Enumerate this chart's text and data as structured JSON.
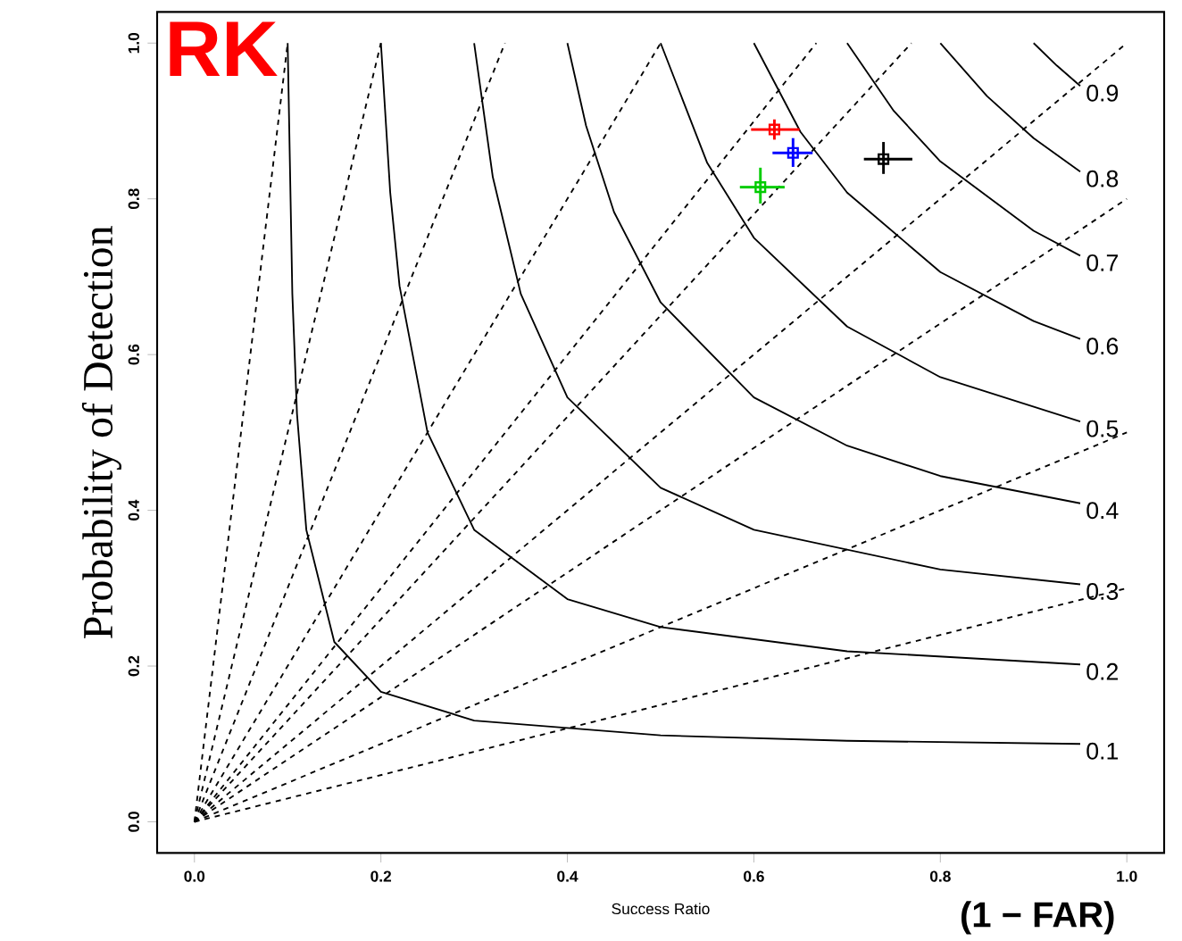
{
  "chart_data": {
    "type": "scatter",
    "xlabel": "Success Ratio",
    "ylabel": "Probability of Detection",
    "annotations": [
      "RK",
      "(1 − FAR)"
    ],
    "xlim": [
      -0.04,
      1.04
    ],
    "ylim": [
      -0.04,
      1.04
    ],
    "xticks": [
      {
        "value": 0,
        "label": "0.0"
      },
      0.2,
      0.4,
      0.6,
      0.8,
      {
        "value": 1,
        "label": "1.0"
      }
    ],
    "yticks": [
      {
        "value": 0,
        "label": "0.0"
      },
      0.2,
      0.4,
      0.6,
      0.8,
      {
        "value": 1,
        "label": "1.0"
      }
    ],
    "series": [
      {
        "type": "line",
        "line_style": "dashed",
        "color": "#000000",
        "x": [
          0,
          1
        ],
        "values": [
          0,
          0.3
        ]
      },
      {
        "type": "line",
        "line_style": "dashed",
        "color": "#000000",
        "x": [
          0,
          1
        ],
        "values": [
          0,
          0.5
        ]
      },
      {
        "type": "line",
        "line_style": "dashed",
        "color": "#000000",
        "x": [
          0,
          1
        ],
        "values": [
          0,
          0.8
        ]
      },
      {
        "type": "line",
        "line_style": "dashed",
        "color": "#000000",
        "x": [
          0,
          1
        ],
        "values": [
          0,
          1
        ]
      },
      {
        "type": "line",
        "line_style": "dashed",
        "color": "#000000",
        "x": [
          0,
          0.769
        ],
        "values": [
          0,
          1
        ]
      },
      {
        "type": "line",
        "line_style": "dashed",
        "color": "#000000",
        "x": [
          0,
          0.667
        ],
        "values": [
          0,
          1
        ]
      },
      {
        "type": "line",
        "line_style": "dashed",
        "color": "#000000",
        "x": [
          0,
          0.5
        ],
        "values": [
          0,
          1
        ]
      },
      {
        "type": "line",
        "line_style": "dashed",
        "color": "#000000",
        "x": [
          0,
          0.333
        ],
        "values": [
          0,
          1
        ]
      },
      {
        "type": "line",
        "line_style": "dashed",
        "color": "#000000",
        "x": [
          0,
          0.2
        ],
        "values": [
          0,
          1
        ]
      },
      {
        "type": "line",
        "line_style": "dashed",
        "color": "#000000",
        "x": [
          0,
          0.1
        ],
        "values": [
          0,
          1
        ]
      },
      {
        "type": "line",
        "line_style": "solid",
        "color": "#000000",
        "name": "0.1",
        "x": [
          0.1,
          0.105,
          0.11,
          0.12,
          0.15,
          0.2,
          0.3,
          0.5,
          0.7,
          0.95
        ],
        "values": [
          1,
          0.678,
          0.524,
          0.375,
          0.231,
          0.167,
          0.13,
          0.111,
          0.104,
          0.1
        ]
      },
      {
        "type": "line",
        "line_style": "solid",
        "color": "#000000",
        "name": "0.2",
        "x": [
          0.2,
          0.21,
          0.22,
          0.25,
          0.3,
          0.4,
          0.5,
          0.7,
          0.95
        ],
        "values": [
          1,
          0.808,
          0.688,
          0.5,
          0.375,
          0.286,
          0.25,
          0.219,
          0.202
        ]
      },
      {
        "type": "line",
        "line_style": "solid",
        "color": "#000000",
        "name": "0.3",
        "x": [
          0.3,
          0.32,
          0.35,
          0.4,
          0.5,
          0.6,
          0.8,
          0.95
        ],
        "values": [
          1,
          0.828,
          0.678,
          0.545,
          0.429,
          0.375,
          0.324,
          0.305
        ]
      },
      {
        "type": "line",
        "line_style": "solid",
        "color": "#000000",
        "name": "0.4",
        "x": [
          0.4,
          0.42,
          0.45,
          0.5,
          0.6,
          0.7,
          0.8,
          0.95
        ],
        "values": [
          1,
          0.894,
          0.783,
          0.667,
          0.545,
          0.483,
          0.444,
          0.409
        ]
      },
      {
        "type": "line",
        "line_style": "solid",
        "color": "#000000",
        "name": "0.5",
        "x": [
          0.5,
          0.55,
          0.6,
          0.7,
          0.8,
          0.95
        ],
        "values": [
          1,
          0.846,
          0.75,
          0.636,
          0.571,
          0.514
        ]
      },
      {
        "type": "line",
        "line_style": "solid",
        "color": "#000000",
        "name": "0.6",
        "x": [
          0.6,
          0.65,
          0.7,
          0.8,
          0.9,
          0.95
        ],
        "values": [
          1,
          0.886,
          0.808,
          0.706,
          0.643,
          0.62
        ]
      },
      {
        "type": "line",
        "line_style": "solid",
        "color": "#000000",
        "name": "0.7",
        "x": [
          0.7,
          0.75,
          0.8,
          0.9,
          0.95
        ],
        "values": [
          1,
          0.913,
          0.848,
          0.759,
          0.727
        ]
      },
      {
        "type": "line",
        "line_style": "solid",
        "color": "#000000",
        "name": "0.8",
        "x": [
          0.8,
          0.85,
          0.9,
          0.95
        ],
        "values": [
          1,
          0.932,
          0.878,
          0.835
        ]
      },
      {
        "type": "line",
        "line_style": "solid",
        "color": "#000000",
        "name": "0.9",
        "x": [
          0.9,
          0.925,
          0.95
        ],
        "values": [
          1,
          0.971,
          0.945
        ]
      },
      {
        "marker": "square",
        "color": "#ff0000",
        "x": [
          0.622
        ],
        "values": [
          0.889
        ],
        "xerrors": [
          [
            0.597,
            0.649
          ]
        ],
        "errors": [
          [
            0.876,
            0.902
          ]
        ]
      },
      {
        "marker": "square",
        "color": "#0000ff",
        "x": [
          0.642
        ],
        "values": [
          0.859
        ],
        "xerrors": [
          [
            0.62,
            0.663
          ]
        ],
        "errors": [
          [
            0.841,
            0.878
          ]
        ]
      },
      {
        "marker": "square",
        "color": "#00cc00",
        "x": [
          0.607
        ],
        "values": [
          0.815
        ],
        "xerrors": [
          [
            0.585,
            0.633
          ]
        ],
        "errors": [
          [
            0.794,
            0.84
          ]
        ]
      },
      {
        "marker": "square",
        "color": "#000000",
        "x": [
          0.739
        ],
        "values": [
          0.851
        ],
        "xerrors": [
          [
            0.718,
            0.77
          ]
        ],
        "errors": [
          [
            0.832,
            0.873
          ]
        ]
      }
    ]
  }
}
